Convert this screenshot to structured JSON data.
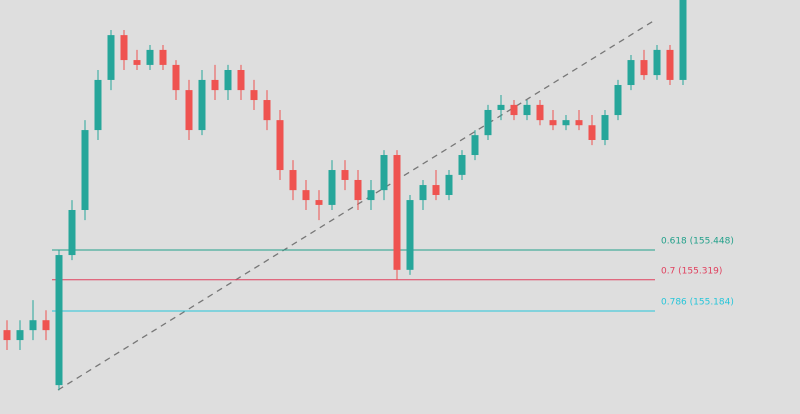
{
  "chart_data": {
    "type": "candlestick",
    "ylim": [
      154.738,
      156.53
    ],
    "up_color": "#26a69a",
    "down_color": "#ef5350",
    "open": [
      155.101,
      155.058,
      155.101,
      155.144,
      154.863,
      155.426,
      155.621,
      155.967,
      156.184,
      156.378,
      156.27,
      156.249,
      156.314,
      156.249,
      156.14,
      155.967,
      156.184,
      156.14,
      156.227,
      156.14,
      156.097,
      156.01,
      155.794,
      155.707,
      155.664,
      155.643,
      155.794,
      155.751,
      155.664,
      155.707,
      155.859,
      155.362,
      155.664,
      155.729,
      155.686,
      155.773,
      155.859,
      155.945,
      156.054,
      156.076,
      156.032,
      156.076,
      156.01,
      155.988,
      156.01,
      155.988,
      155.924,
      156.032,
      156.162,
      156.27,
      156.205,
      156.314,
      156.184
    ],
    "high": [
      155.144,
      155.144,
      155.231,
      155.187,
      155.448,
      155.664,
      156.01,
      156.227,
      156.4,
      156.4,
      156.314,
      156.335,
      156.335,
      156.27,
      156.184,
      156.227,
      156.249,
      156.249,
      156.249,
      156.184,
      156.14,
      156.054,
      155.837,
      155.751,
      155.707,
      155.837,
      155.837,
      155.794,
      155.751,
      155.88,
      155.88,
      155.686,
      155.751,
      155.794,
      155.794,
      155.88,
      155.967,
      156.076,
      156.119,
      156.097,
      156.097,
      156.097,
      156.054,
      156.032,
      156.054,
      156.032,
      156.054,
      156.184,
      156.292,
      156.314,
      156.335,
      156.335,
      156.53
    ],
    "low": [
      155.015,
      155.015,
      155.058,
      155.058,
      154.841,
      155.404,
      155.577,
      155.924,
      156.14,
      156.227,
      156.227,
      156.227,
      156.227,
      156.097,
      155.924,
      155.945,
      156.097,
      156.097,
      156.097,
      156.054,
      155.967,
      155.751,
      155.664,
      155.621,
      155.577,
      155.621,
      155.707,
      155.621,
      155.621,
      155.664,
      155.318,
      155.34,
      155.621,
      155.664,
      155.664,
      155.751,
      155.837,
      155.924,
      156.01,
      156.01,
      156.01,
      155.988,
      155.967,
      155.967,
      155.967,
      155.902,
      155.902,
      156.01,
      156.14,
      156.184,
      156.184,
      156.162,
      156.162
    ],
    "close": [
      155.058,
      155.101,
      155.144,
      155.101,
      155.426,
      155.621,
      155.967,
      156.184,
      156.378,
      156.27,
      156.249,
      156.314,
      156.249,
      156.14,
      155.967,
      156.184,
      156.14,
      156.227,
      156.14,
      156.097,
      156.01,
      155.794,
      155.707,
      155.664,
      155.643,
      155.794,
      155.751,
      155.664,
      155.707,
      155.859,
      155.362,
      155.664,
      155.729,
      155.686,
      155.773,
      155.859,
      155.945,
      156.054,
      156.076,
      156.032,
      156.076,
      156.01,
      155.988,
      156.01,
      155.988,
      155.924,
      156.032,
      156.162,
      156.27,
      156.205,
      156.314,
      156.184,
      156.53
    ],
    "fib_levels": [
      {
        "value": 155.448,
        "label": "0.618 (155.448)",
        "color": "#22a08a"
      },
      {
        "value": 155.319,
        "label": "0.7 (155.319)",
        "color": "#e0405e"
      },
      {
        "value": 155.184,
        "label": "0.786 (155.184)",
        "color": "#26c6da"
      }
    ]
  }
}
